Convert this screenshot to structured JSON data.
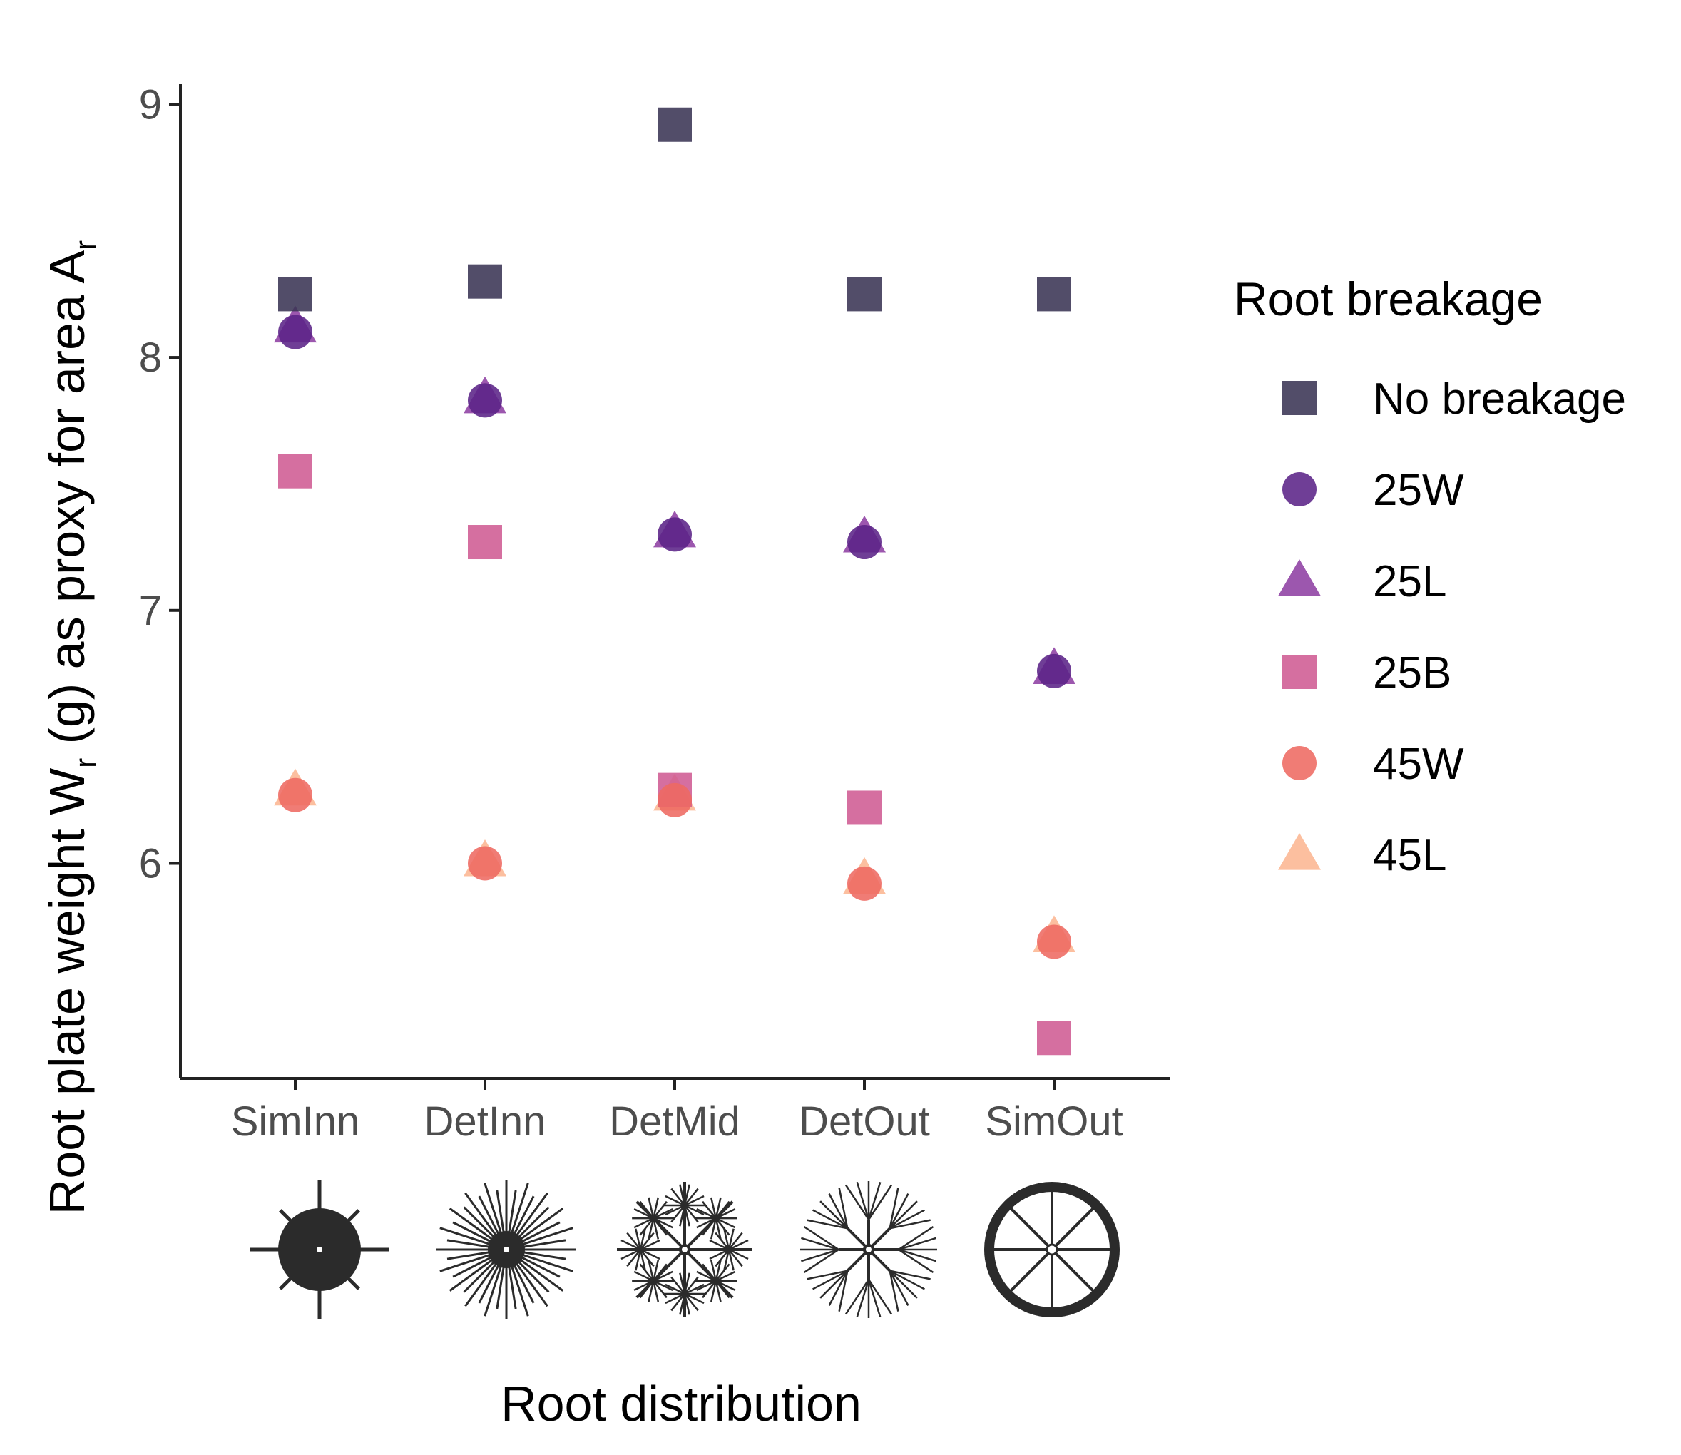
{
  "chart_data": {
    "type": "scatter",
    "title": "",
    "xlabel": "Root distribution",
    "ylabel_main": "Root plate weight  W",
    "ylabel_sub": "r",
    "ylabel_rest": " (g) as proxy for area A",
    "ylabel_sub2": "r",
    "categories": [
      "SimInn",
      "DetInn",
      "DetMid",
      "DetOut",
      "SimOut"
    ],
    "category_glyphs": [
      "root-distribution-siminn-icon",
      "root-distribution-detinn-icon",
      "root-distribution-detmid-icon",
      "root-distribution-detout-icon",
      "root-distribution-simout-icon"
    ],
    "ylim": [
      5.15,
      9.08
    ],
    "yticks": [
      6,
      7,
      8,
      9
    ],
    "grid": false,
    "legend": {
      "title": "Root breakage",
      "placement": "right"
    },
    "series": [
      {
        "name": "No breakage",
        "shape": "square",
        "color": "#3a3454",
        "values": [
          8.25,
          8.3,
          8.92,
          8.25,
          8.25
        ]
      },
      {
        "name": "25W",
        "shape": "circle",
        "color": "#5b2388",
        "values": [
          8.1,
          7.83,
          7.3,
          7.27,
          6.76
        ]
      },
      {
        "name": "25L",
        "shape": "triangle",
        "color": "#8b3aa0",
        "values": [
          8.12,
          7.84,
          7.31,
          7.29,
          6.77
        ]
      },
      {
        "name": "25B",
        "shape": "square",
        "color": "#cf5b93",
        "values": [
          7.55,
          7.27,
          6.29,
          6.22,
          5.31
        ]
      },
      {
        "name": "45W",
        "shape": "circle",
        "color": "#ee6a62",
        "values": [
          6.27,
          6.0,
          6.25,
          5.92,
          5.69
        ]
      },
      {
        "name": "45L",
        "shape": "triangle",
        "color": "#fbb48e",
        "values": [
          6.29,
          6.01,
          6.27,
          5.94,
          5.71
        ]
      }
    ]
  }
}
